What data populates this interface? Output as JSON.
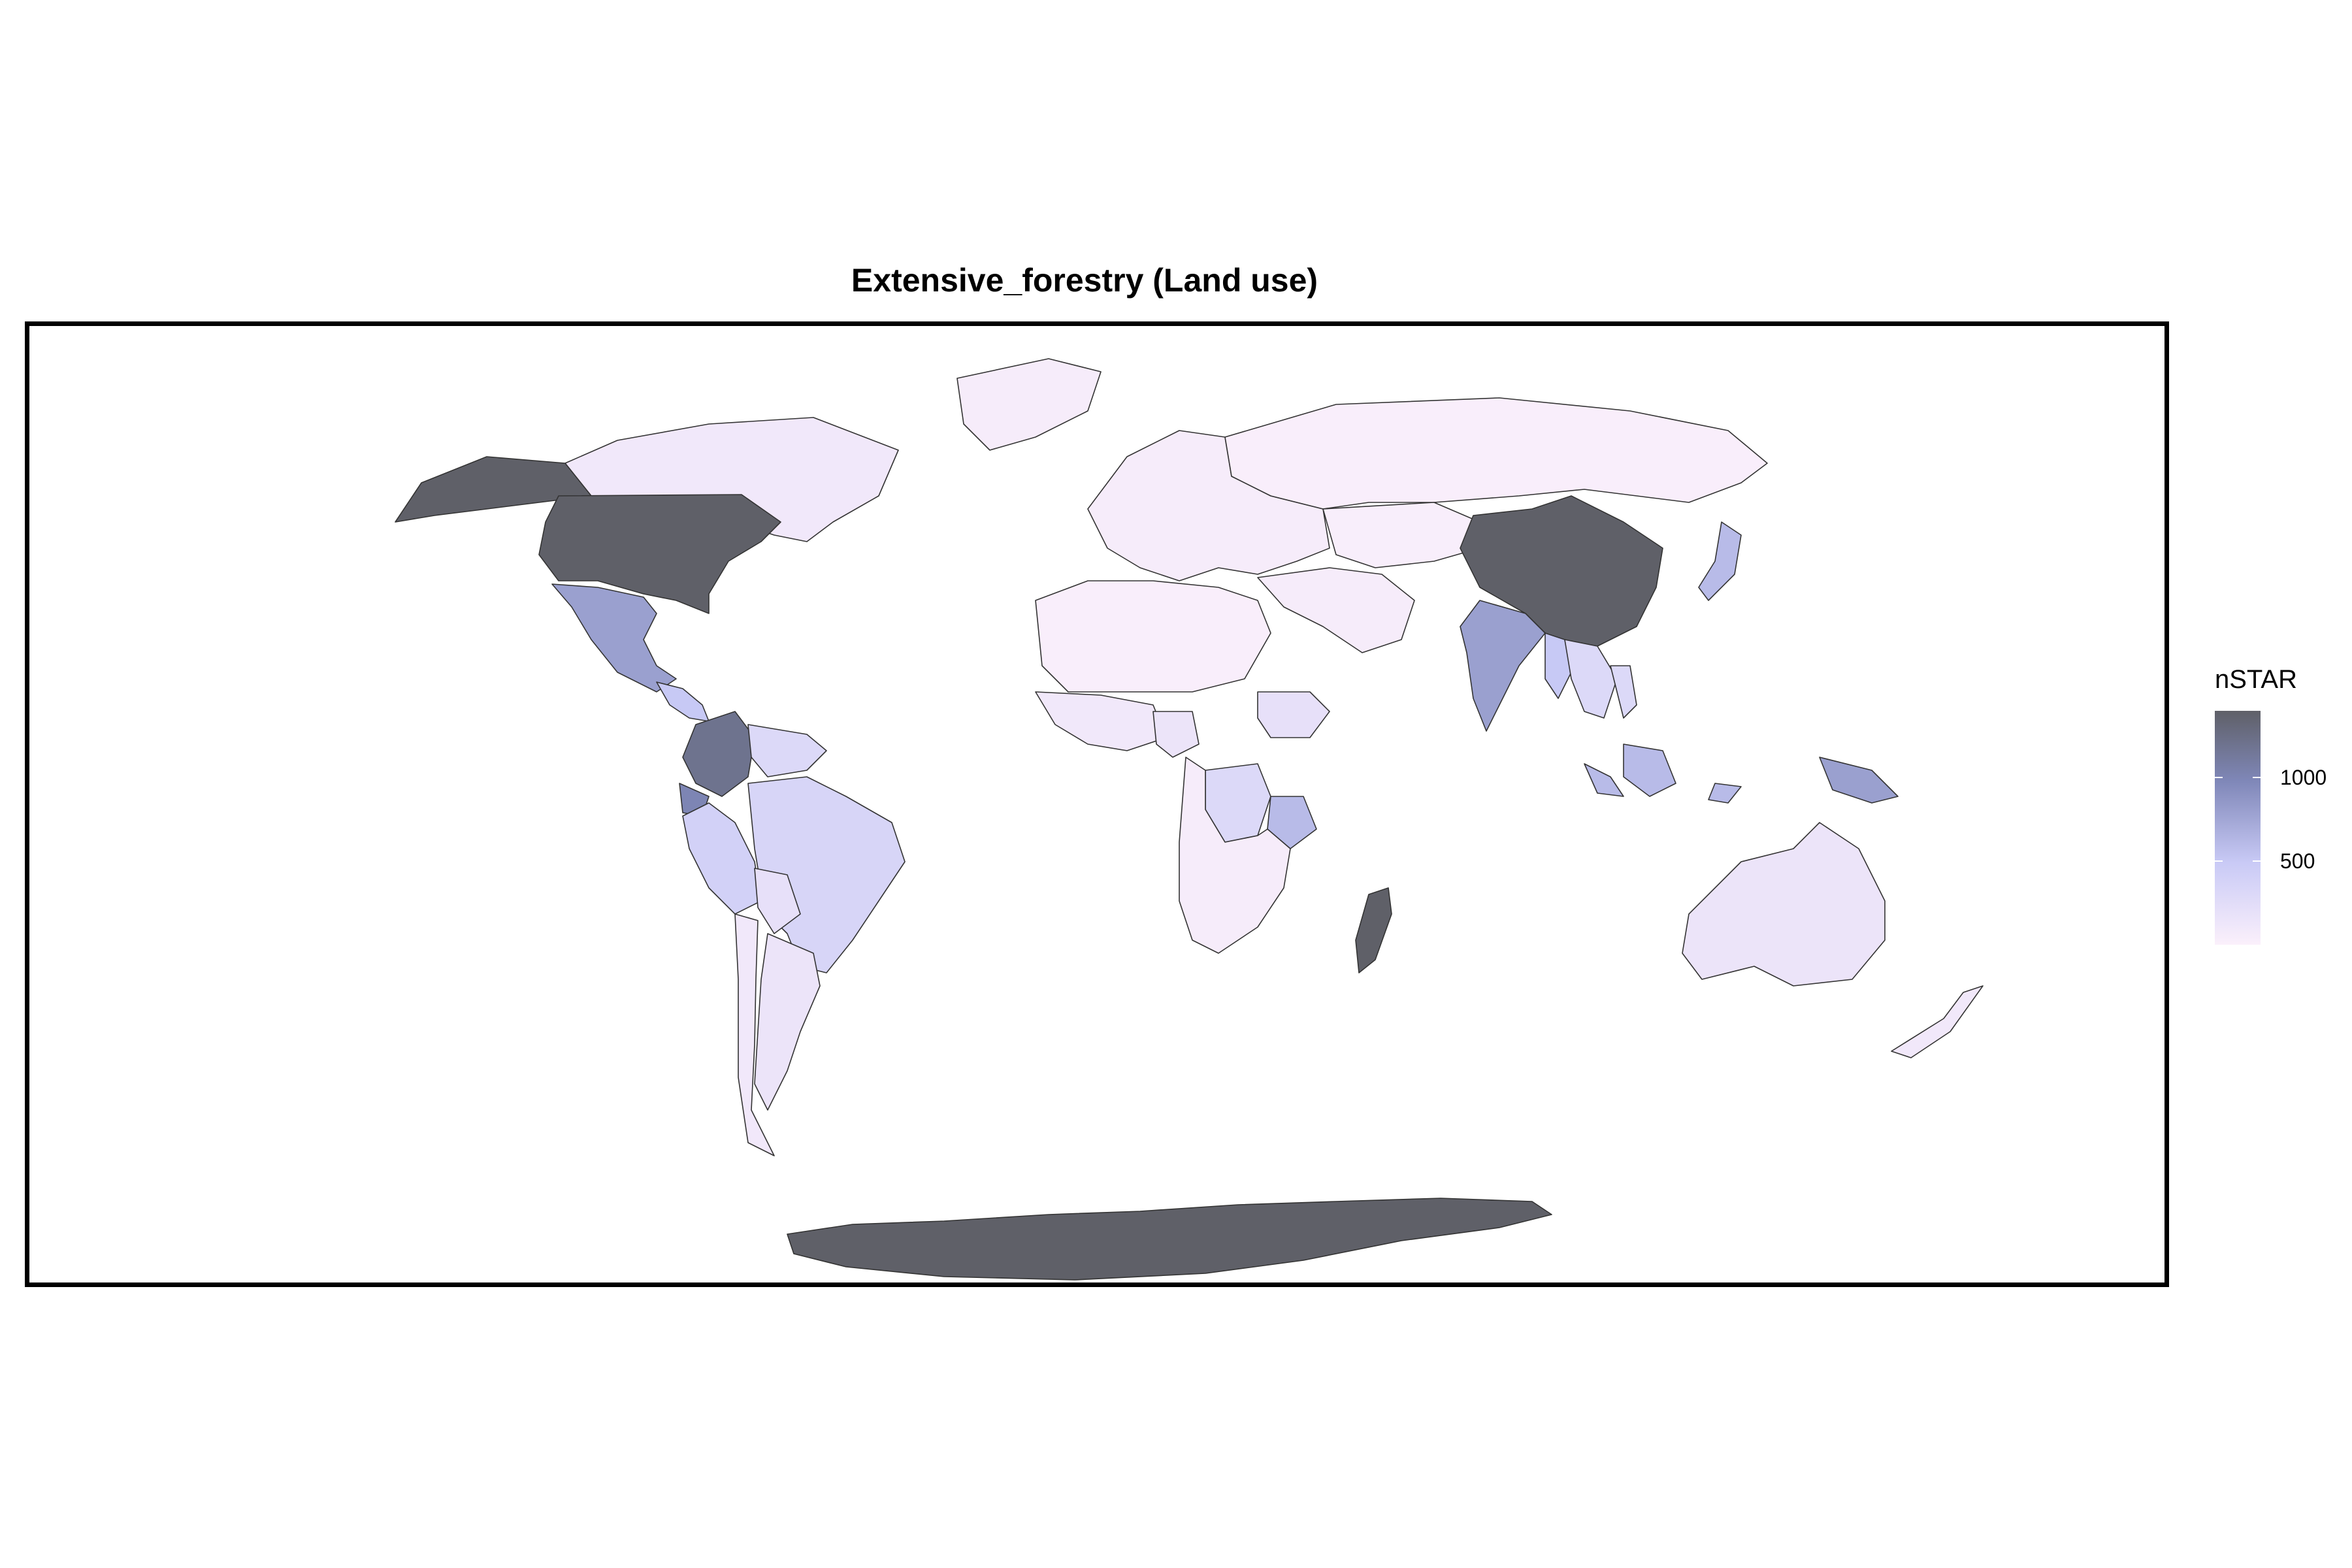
{
  "title": "Extensive_forestry (Land use)",
  "legend": {
    "title": "nSTAR",
    "ticks": [
      {
        "value": 500,
        "label": "500"
      },
      {
        "value": 1000,
        "label": "1000"
      }
    ],
    "min": 0,
    "max": 1400,
    "color_low": "#fbf0fb",
    "color_mid": "#c9caf6",
    "color_high": "#5f6068"
  },
  "chart_data": {
    "type": "choropleth",
    "title": "Extensive_forestry (Land use)",
    "legend_title": "nSTAR",
    "legend_ticks": [
      500,
      1000
    ],
    "value_range": [
      0,
      1400
    ],
    "regions": [
      {
        "name": "Canada",
        "value": 100
      },
      {
        "name": "Alaska (USA)",
        "value": 1400
      },
      {
        "name": "USA",
        "value": 1400
      },
      {
        "name": "Mexico",
        "value": 800
      },
      {
        "name": "Central America",
        "value": 500
      },
      {
        "name": "Colombia",
        "value": 1200
      },
      {
        "name": "Venezuela",
        "value": 300
      },
      {
        "name": "Ecuador",
        "value": 1000
      },
      {
        "name": "Peru",
        "value": 400
      },
      {
        "name": "Brazil",
        "value": 350
      },
      {
        "name": "Bolivia",
        "value": 200
      },
      {
        "name": "Argentina",
        "value": 150
      },
      {
        "name": "Chile",
        "value": 100
      },
      {
        "name": "Greenland",
        "value": 50
      },
      {
        "name": "Europe",
        "value": 50
      },
      {
        "name": "Russia",
        "value": 20
      },
      {
        "name": "Middle East",
        "value": 50
      },
      {
        "name": "North Africa",
        "value": 20
      },
      {
        "name": "West Africa",
        "value": 100
      },
      {
        "name": "Nigeria",
        "value": 150
      },
      {
        "name": "Ethiopia",
        "value": 200
      },
      {
        "name": "DR Congo",
        "value": 300
      },
      {
        "name": "Tanzania",
        "value": 600
      },
      {
        "name": "Southern Africa",
        "value": 50
      },
      {
        "name": "Madagascar",
        "value": 1400
      },
      {
        "name": "Central Asia",
        "value": 30
      },
      {
        "name": "China",
        "value": 1400
      },
      {
        "name": "India",
        "value": 800
      },
      {
        "name": "Myanmar",
        "value": 500
      },
      {
        "name": "Southeast Asia",
        "value": 300
      },
      {
        "name": "Japan",
        "value": 600
      },
      {
        "name": "Indonesia",
        "value": 600
      },
      {
        "name": "Papua New Guinea",
        "value": 800
      },
      {
        "name": "Australia",
        "value": 150
      },
      {
        "name": "New Zealand",
        "value": 100
      },
      {
        "name": "Antarctica",
        "value": 1400
      }
    ]
  }
}
